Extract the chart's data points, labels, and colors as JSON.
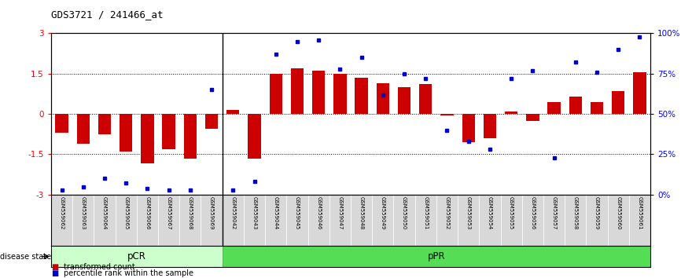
{
  "title": "GDS3721 / 241466_at",
  "samples": [
    "GSM559062",
    "GSM559063",
    "GSM559064",
    "GSM559065",
    "GSM559066",
    "GSM559067",
    "GSM559068",
    "GSM559069",
    "GSM559042",
    "GSM559043",
    "GSM559044",
    "GSM559045",
    "GSM559046",
    "GSM559047",
    "GSM559048",
    "GSM559049",
    "GSM559050",
    "GSM559051",
    "GSM559052",
    "GSM559053",
    "GSM559054",
    "GSM559055",
    "GSM559056",
    "GSM559057",
    "GSM559058",
    "GSM559059",
    "GSM559060",
    "GSM559061"
  ],
  "transformed_count": [
    -0.7,
    -1.1,
    -0.75,
    -1.4,
    -1.85,
    -1.3,
    -1.65,
    -0.55,
    0.15,
    -1.65,
    1.5,
    1.7,
    1.6,
    1.5,
    1.35,
    1.15,
    1.0,
    1.1,
    -0.05,
    -1.05,
    -0.9,
    0.1,
    -0.25,
    0.45,
    0.65,
    0.45,
    0.85,
    1.55
  ],
  "percentile_rank": [
    3,
    5,
    10,
    7,
    4,
    3,
    3,
    65,
    3,
    8,
    87,
    95,
    96,
    78,
    85,
    62,
    75,
    72,
    40,
    33,
    28,
    72,
    77,
    23,
    82,
    76,
    90,
    98
  ],
  "pcr_count": 8,
  "ppr_count": 20,
  "bar_color": "#cc0000",
  "dot_color": "#0000cc",
  "ylim": [
    -3,
    3
  ],
  "yticks_left": [
    -3,
    -1.5,
    0,
    1.5,
    3
  ],
  "ytick_labels_left": [
    "-3",
    "-1.5",
    "0",
    "1.5",
    "3"
  ],
  "yticks_right": [
    0,
    25,
    50,
    75,
    100
  ],
  "ytick_labels_right": [
    "0%",
    "25%",
    "50%",
    "75%",
    "100%"
  ],
  "hline_vals": [
    1.5,
    0,
    -1.5
  ],
  "pcr_color": "#ccffcc",
  "ppr_color": "#55dd55",
  "label_bar": "transformed count",
  "label_dot": "percentile rank within the sample",
  "background_color": "#ffffff",
  "label_bg": "#d8d8d8"
}
